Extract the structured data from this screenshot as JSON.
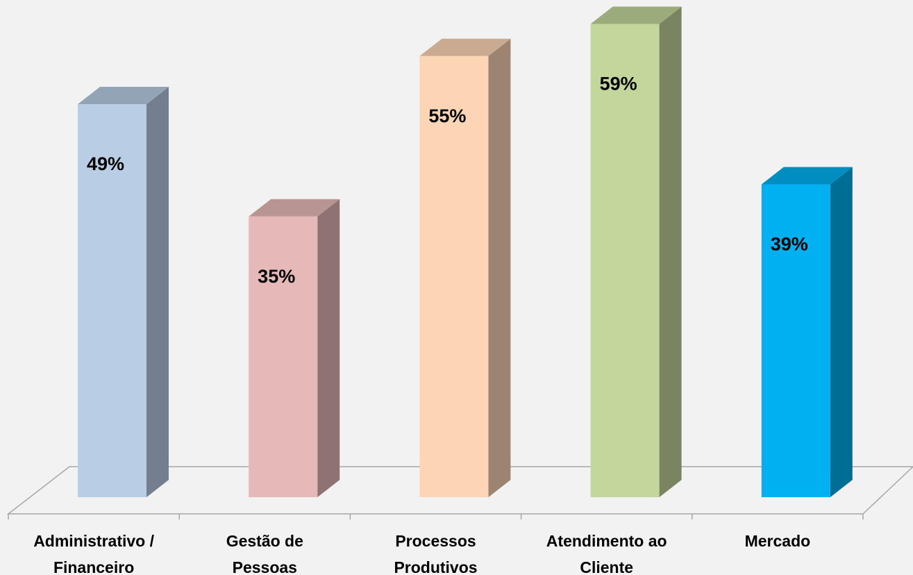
{
  "chart_data": {
    "type": "bar3d",
    "categories": [
      "Administrativo /\nFinanceiro",
      "Gestão de\nPessoas",
      "Processos\nProdutivos",
      "Atendimento ao\nCliente",
      "Mercado"
    ],
    "values": [
      49,
      35,
      55,
      59,
      39
    ],
    "value_labels": [
      "49%",
      "35%",
      "55%",
      "59%",
      "39%"
    ],
    "colors": [
      "#b9cde5",
      "#e6b9b8",
      "#fcd5b5",
      "#c3d69b",
      "#00b0f0"
    ]
  }
}
